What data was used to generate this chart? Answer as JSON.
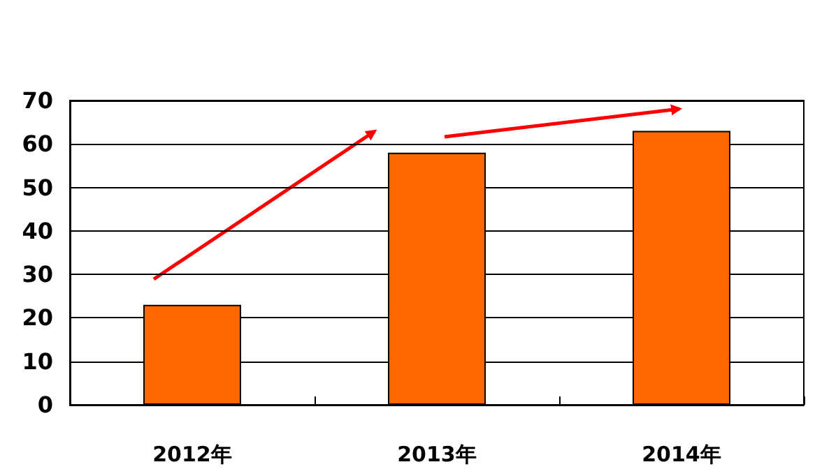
{
  "chart_data": {
    "type": "bar",
    "categories": [
      "2012年",
      "2013年",
      "2014年"
    ],
    "values": [
      23,
      58,
      63
    ],
    "color": "#ff6600",
    "ylim": [
      0,
      70
    ],
    "yticks": [
      0,
      10,
      20,
      30,
      40,
      50,
      60,
      70
    ],
    "grid": "y"
  }
}
